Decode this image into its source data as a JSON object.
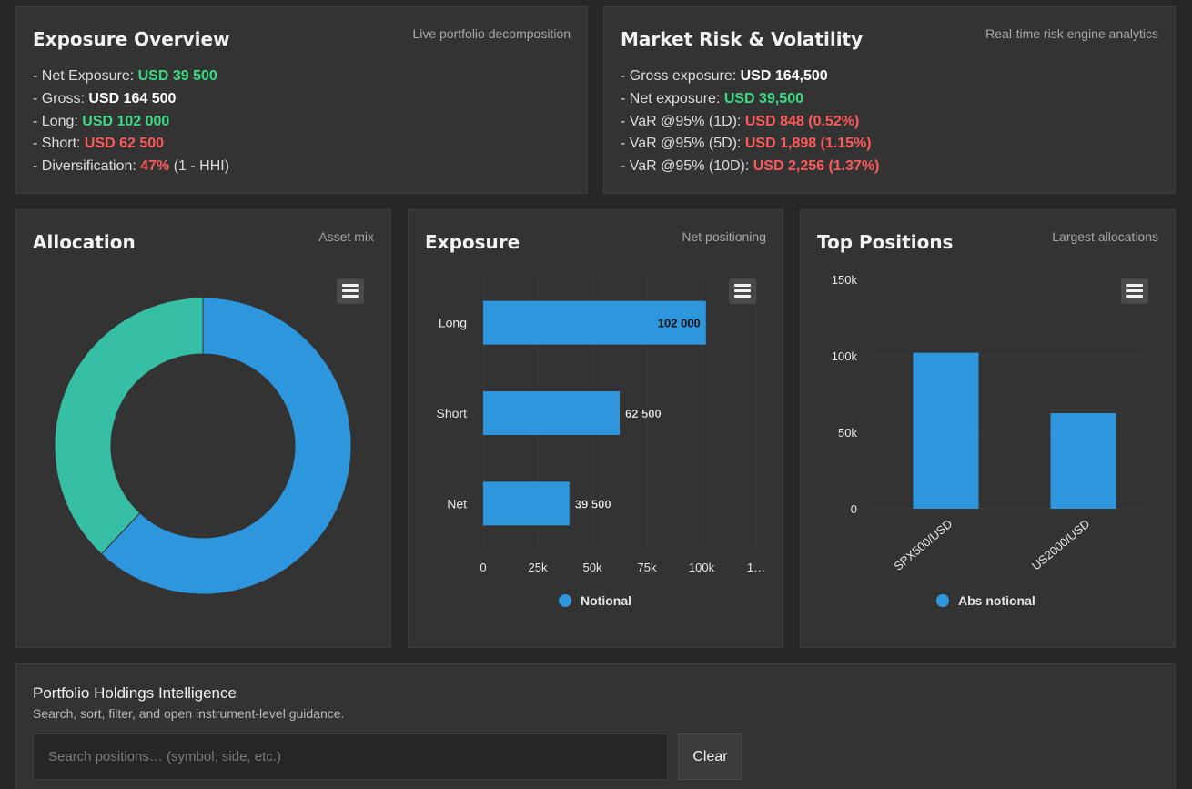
{
  "exposure_overview": {
    "title": "Exposure Overview",
    "subtitle": "Live portfolio decomposition",
    "lines": [
      {
        "label": "- Net Exposure: ",
        "value": "USD 39 500",
        "suffix": ""
      },
      {
        "label": "- Gross: ",
        "value": "USD 164 500",
        "suffix": ""
      },
      {
        "label": "- Long: ",
        "value": "USD 102 000",
        "suffix": ""
      },
      {
        "label": "- Short: ",
        "value": "USD 62 500",
        "suffix": ""
      },
      {
        "label": "- Diversification: ",
        "value": "47%",
        "suffix": " (1 - HHI)"
      }
    ]
  },
  "market_risk": {
    "title": "Market Risk & Volatility",
    "subtitle": "Real-time risk engine analytics",
    "lines": [
      {
        "label": "- Gross exposure: ",
        "value": "USD 164,500"
      },
      {
        "label": "- Net exposure: ",
        "value": "USD 39,500"
      },
      {
        "label": "- VaR @95% (1D): ",
        "value": "USD 848 (0.52%)"
      },
      {
        "label": "- VaR @95% (5D): ",
        "value": "USD 1,898 (1.15%)"
      },
      {
        "label": "- VaR @95% (10D): ",
        "value": "USD 2,256 (1.37%)"
      }
    ]
  },
  "colors": {
    "positive": "#3ddc84",
    "negative": "#ff5a5a",
    "series_blue": "#2d96dd",
    "series_teal": "#36bfa4"
  },
  "allocation": {
    "title": "Allocation",
    "subtitle": "Asset mix",
    "menu_icon": "hamburger-menu-icon"
  },
  "exposure_chart": {
    "title": "Exposure",
    "subtitle": "Net positioning",
    "menu_icon": "hamburger-menu-icon",
    "legend": "Notional"
  },
  "top_positions": {
    "title": "Top Positions",
    "subtitle": "Largest allocations",
    "menu_icon": "hamburger-menu-icon",
    "legend": "Abs notional"
  },
  "chart_data": [
    {
      "type": "pie",
      "donut": true,
      "slices": [
        {
          "value": 62,
          "color": "#2d96dd"
        },
        {
          "value": 38,
          "color": "#36bfa4"
        }
      ]
    },
    {
      "type": "bar",
      "orientation": "horizontal",
      "categories": [
        "Long",
        "Short",
        "Net"
      ],
      "series": [
        {
          "name": "Notional",
          "values": [
            102000,
            62500,
            39500
          ]
        }
      ],
      "data_labels": [
        "102 000",
        "62 500",
        "39 500"
      ],
      "x_ticks": [
        "0",
        "25k",
        "50k",
        "75k",
        "100k",
        "1…"
      ],
      "xlim": [
        0,
        125000
      ],
      "grid": true,
      "legend": "bottom-center"
    },
    {
      "type": "bar",
      "orientation": "vertical",
      "categories": [
        "SPX500/USD",
        "US2000/USD"
      ],
      "series": [
        {
          "name": "Abs notional",
          "values": [
            102000,
            62500
          ]
        }
      ],
      "y_ticks": [
        "0",
        "50k",
        "100k",
        "150k"
      ],
      "ylim": [
        0,
        150000
      ],
      "grid": true,
      "legend": "bottom-center"
    }
  ],
  "holdings": {
    "title": "Portfolio Holdings Intelligence",
    "subtitle": "Search, sort, filter, and open instrument-level guidance.",
    "search_placeholder": "Search positions… (symbol, side, etc.)",
    "search_value": "",
    "clear_label": "Clear"
  }
}
